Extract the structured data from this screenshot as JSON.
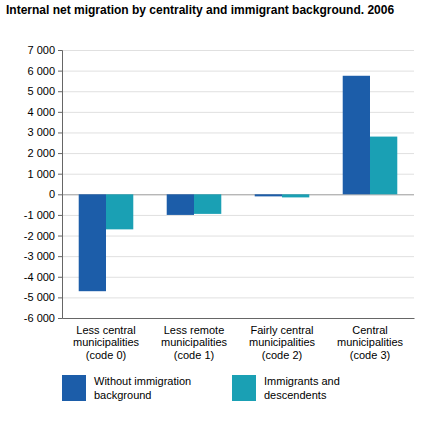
{
  "chart_data": {
    "type": "bar",
    "title": "Internal net migration by centrality and immigrant background. 2006",
    "categories": [
      "Less central municipalities (code 0)",
      "Less remote municipalities (code 1)",
      "Fairly central municipalities (code 2)",
      "Central municipalities (code 3)"
    ],
    "series": [
      {
        "name": "Without immigration background",
        "color": "#1c5da9",
        "values": [
          -4700,
          -1000,
          -100,
          5750
        ]
      },
      {
        "name": "Immigrants and descendents",
        "color": "#1aa0b4",
        "values": [
          -1700,
          -950,
          -150,
          2800
        ]
      }
    ],
    "ylim": [
      -6000,
      7000
    ],
    "yticks": [
      {
        "value": -6000,
        "label": "-6 000"
      },
      {
        "value": -5000,
        "label": "-5 000"
      },
      {
        "value": -4000,
        "label": "-4 000"
      },
      {
        "value": -3000,
        "label": "-3 000"
      },
      {
        "value": -2000,
        "label": "-2 000"
      },
      {
        "value": -1000,
        "label": "-1 000"
      },
      0,
      {
        "value": 1000,
        "label": "1 000"
      },
      {
        "value": 2000,
        "label": "2 000"
      },
      {
        "value": 3000,
        "label": "3 000"
      },
      {
        "value": 4000,
        "label": "4 000"
      },
      {
        "value": 5000,
        "label": "5 000"
      },
      {
        "value": 6000,
        "label": "6 000"
      },
      {
        "value": 7000,
        "label": "7 000"
      }
    ],
    "grid": true,
    "legend": "bottom"
  }
}
